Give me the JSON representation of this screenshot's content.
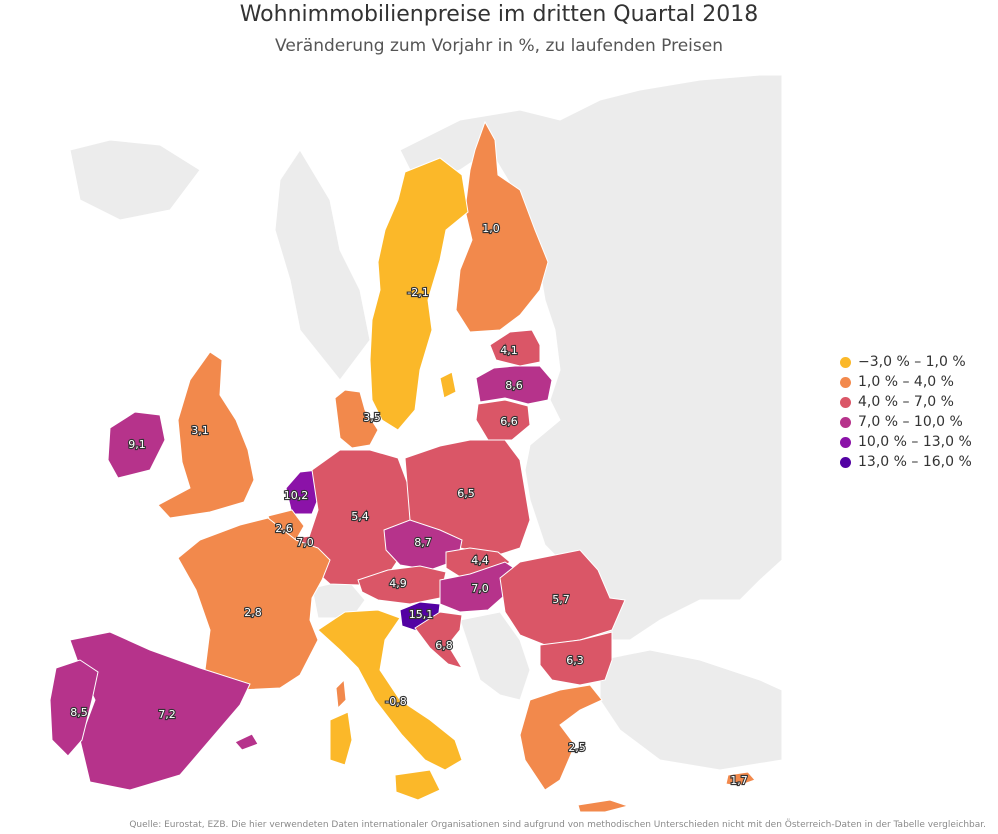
{
  "title": "Wohnimmobilienpreise im dritten Quartal 2018",
  "subtitle": "Veränderung zum Vorjahr in %, zu laufenden Preisen",
  "legend": [
    {
      "label": "−3,0 % – 1,0 %",
      "color": "#fbb829"
    },
    {
      "label": "1,0 % – 4,0 %",
      "color": "#f2894c"
    },
    {
      "label": "4,0 % – 7,0 %",
      "color": "#da5667"
    },
    {
      "label": "7,0 % – 10,0 %",
      "color": "#b6338b"
    },
    {
      "label": "10,0 % – 13,0 %",
      "color": "#8b12a8"
    },
    {
      "label": "13,0 % – 16,0 %",
      "color": "#5302a3"
    }
  ],
  "regions": [
    {
      "name": "finland",
      "value": "1,0",
      "color": "#f2894c"
    },
    {
      "name": "sweden",
      "value": "-2,1",
      "color": "#fbb829"
    },
    {
      "name": "latvia",
      "value": "4,1",
      "color": "#da5667"
    },
    {
      "name": "lithuania-north",
      "value": "8,6",
      "color": "#b6338b"
    },
    {
      "name": "lithuania",
      "value": "6,6",
      "color": "#da5667"
    },
    {
      "name": "denmark",
      "value": "3,5",
      "color": "#f2894c"
    },
    {
      "name": "ireland",
      "value": "9,1",
      "color": "#b6338b"
    },
    {
      "name": "united-kingdom",
      "value": "3,1",
      "color": "#f2894c"
    },
    {
      "name": "netherlands",
      "value": "10,2",
      "color": "#8b12a8"
    },
    {
      "name": "belgium",
      "value": "2,6",
      "color": "#f2894c"
    },
    {
      "name": "luxembourg",
      "value": "7,0",
      "color": "#da5667"
    },
    {
      "name": "germany",
      "value": "5,4",
      "color": "#da5667"
    },
    {
      "name": "poland",
      "value": "6,5",
      "color": "#da5667"
    },
    {
      "name": "czechia",
      "value": "8,7",
      "color": "#b6338b"
    },
    {
      "name": "slovakia",
      "value": "4,4",
      "color": "#da5667"
    },
    {
      "name": "austria",
      "value": "4,9",
      "color": "#da5667"
    },
    {
      "name": "hungary",
      "value": "7,0",
      "color": "#b6338b"
    },
    {
      "name": "slovenia",
      "value": "15,1",
      "color": "#5302a3"
    },
    {
      "name": "croatia",
      "value": "6,8",
      "color": "#da5667"
    },
    {
      "name": "romania",
      "value": "5,7",
      "color": "#da5667"
    },
    {
      "name": "bulgaria",
      "value": "6,3",
      "color": "#da5667"
    },
    {
      "name": "france",
      "value": "2,8",
      "color": "#f2894c"
    },
    {
      "name": "spain",
      "value": "7,2",
      "color": "#b6338b"
    },
    {
      "name": "portugal",
      "value": "8,5",
      "color": "#b6338b"
    },
    {
      "name": "italy",
      "value": "-0,8",
      "color": "#fbb829"
    },
    {
      "name": "greece",
      "value": "2,5",
      "color": "#f2894c"
    },
    {
      "name": "cyprus",
      "value": "1,7",
      "color": "#f2894c"
    }
  ],
  "source": "Quelle: Eurostat, EZB. Die hier verwendeten Daten internationaler Organisationen sind aufgrund von methodischen Unterschieden nicht mit den Österreich-Daten in der Tabelle vergleichbar."
}
